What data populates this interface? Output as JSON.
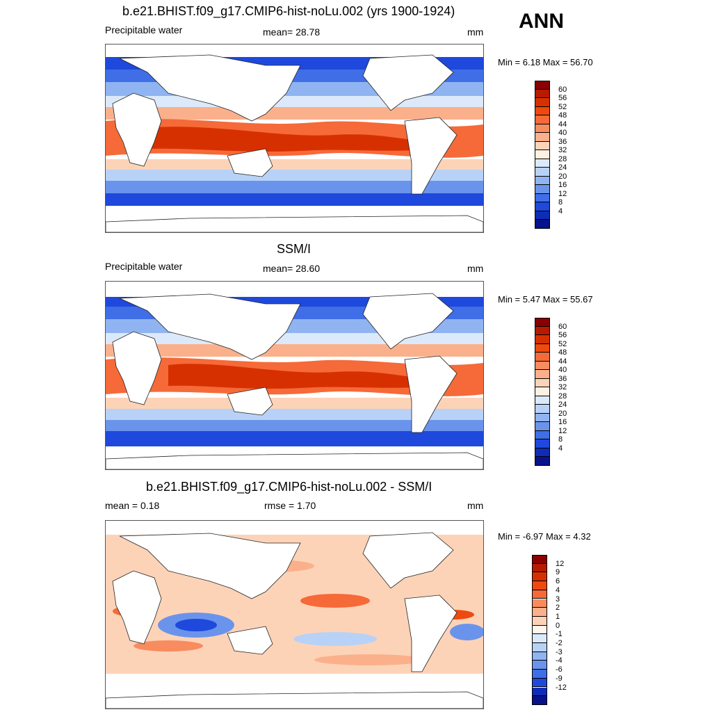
{
  "season": "ANN",
  "panels": [
    {
      "title": "b.e21.BHIST.f09_g17.CMIP6-hist-noLu.002 (yrs 1900-1924)",
      "left_label": "Precipitable water",
      "center_label": "mean=  28.78",
      "units": "mm",
      "minmax": "Min =   6.18 Max =  56.70"
    },
    {
      "title": "SSM/I",
      "left_label": "Precipitable water",
      "center_label": "mean=  28.60",
      "units": "mm",
      "minmax": "Min =   5.47 Max =  55.67"
    },
    {
      "title": "b.e21.BHIST.f09_g17.CMIP6-hist-noLu.002 - SSM/I",
      "left_label": "mean =   0.18",
      "center_label": "rmse =   1.70",
      "units": "mm",
      "minmax": "Min =  -6.97 Max =   4.32"
    }
  ],
  "colorbars": {
    "abs": {
      "levels": [
        "60",
        "56",
        "52",
        "48",
        "44",
        "40",
        "36",
        "32",
        "28",
        "24",
        "20",
        "16",
        "12",
        "8",
        "4"
      ],
      "colors": [
        "#8b0000",
        "#b81a00",
        "#d73000",
        "#ee4a10",
        "#f56a38",
        "#f88c5e",
        "#fbb08c",
        "#fdd3b8",
        "#fef1e2",
        "#dce9fb",
        "#b8d2f7",
        "#8fb4f1",
        "#6a94ec",
        "#3f6ee6",
        "#1f48dc",
        "#0d2db8",
        "#06138a"
      ]
    },
    "diff": {
      "levels": [
        "12",
        "9",
        "6",
        "4",
        "3",
        "2",
        "1",
        "0",
        "-1",
        "-2",
        "-3",
        "-4",
        "-6",
        "-9",
        "-12"
      ],
      "colors": [
        "#8b0000",
        "#b81a00",
        "#d73000",
        "#ee4a10",
        "#f56a38",
        "#f88c5e",
        "#fbb08c",
        "#fdd3b8",
        "#fef6ee",
        "#dce9fb",
        "#b8d2f7",
        "#8fb4f1",
        "#6a94ec",
        "#3f6ee6",
        "#1f48dc",
        "#0d2db8",
        "#06138a"
      ]
    }
  }
}
